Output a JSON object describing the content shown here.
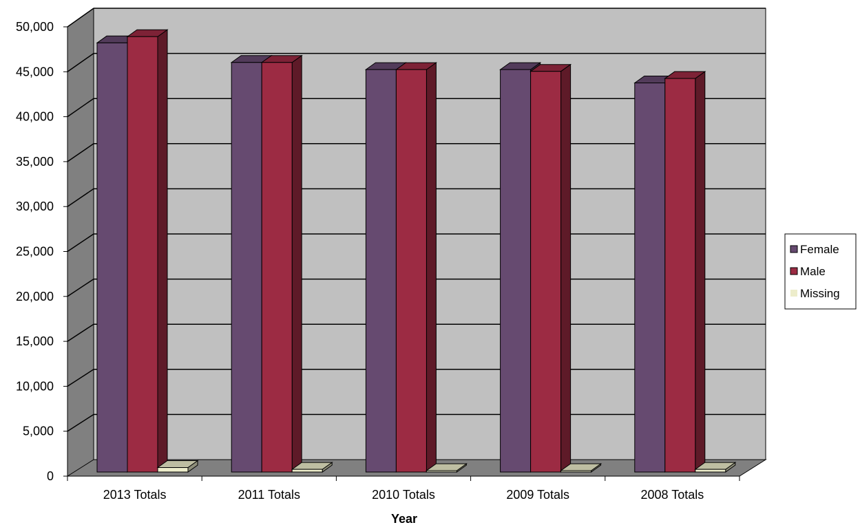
{
  "chart_data": {
    "type": "bar",
    "title": "",
    "xlabel": "Year",
    "ylabel": "",
    "ylim": [
      0,
      50000
    ],
    "ytick_step": 5000,
    "categories": [
      "2013 Totals",
      "2011 Totals",
      "2010 Totals",
      "2009 Totals",
      "2008 Totals"
    ],
    "series": [
      {
        "name": "Female",
        "color": "#664A70",
        "values": [
          48200,
          46000,
          45200,
          45200,
          43700
        ]
      },
      {
        "name": "Male",
        "color": "#9C2B43",
        "values": [
          48900,
          46000,
          45200,
          45000,
          44200
        ]
      },
      {
        "name": "Missing",
        "color": "#EDEDCB",
        "values": [
          500,
          300,
          150,
          100,
          300
        ]
      }
    ],
    "grid": true,
    "legend_position": "right",
    "style": "3d-column"
  }
}
